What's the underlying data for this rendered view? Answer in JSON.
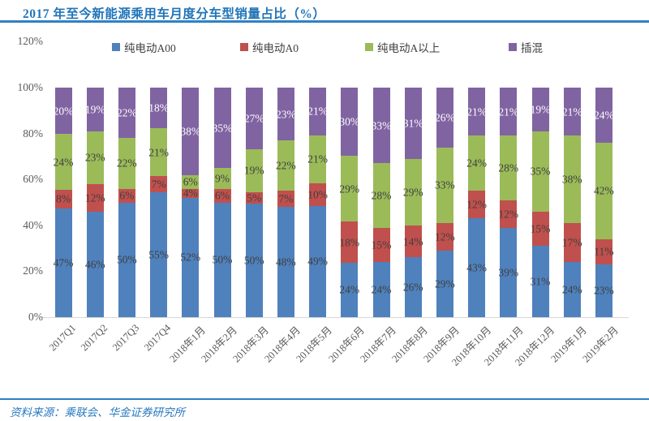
{
  "title": "2017 年至今新能源乘用车月度分车型销量占比（%）",
  "source_note": "资料来源：乘联会、华金证券研究所",
  "accent_color": "#2E81C5",
  "chart_data": {
    "type": "bar",
    "variant": "stacked-100-percent",
    "title": "2017 年至今新能源乘用车月度分车型销量占比（%）",
    "categories": [
      "2017Q1",
      "2017Q2",
      "2017Q3",
      "2017Q4",
      "2018年1月",
      "2018年2月",
      "2018年3月",
      "2018年4月",
      "2018年5月",
      "2018年6月",
      "2018年7月",
      "2018年8月",
      "2018年9月",
      "2018年10月",
      "2018年11月",
      "2018年12月",
      "2019年1月",
      "2019年2月"
    ],
    "series": [
      {
        "name": "纯电动A00",
        "color": "#4F81BD",
        "label_color": "#3f3f3f",
        "values": [
          47,
          46,
          50,
          55,
          52,
          50,
          50,
          48,
          49,
          24,
          24,
          26,
          29,
          43,
          39,
          31,
          24,
          23
        ]
      },
      {
        "name": "纯电动A0",
        "color": "#C0504D",
        "label_color": "#3f3f3f",
        "values": [
          8,
          12,
          6,
          7,
          4,
          6,
          5,
          7,
          10,
          18,
          15,
          14,
          12,
          12,
          12,
          15,
          17,
          11
        ]
      },
      {
        "name": "纯电动A以上",
        "color": "#9BBB59",
        "label_color": "#3f3f3f",
        "values": [
          24,
          23,
          22,
          21,
          6,
          9,
          19,
          22,
          21,
          29,
          28,
          29,
          33,
          24,
          28,
          35,
          38,
          42
        ]
      },
      {
        "name": "插混",
        "color": "#8064A2",
        "label_color": "#FFFFFF",
        "values": [
          20,
          19,
          22,
          18,
          38,
          35,
          27,
          23,
          21,
          30,
          33,
          31,
          26,
          21,
          21,
          19,
          21,
          24
        ]
      }
    ],
    "yticks": [
      "0%",
      "20%",
      "40%",
      "60%",
      "80%",
      "100%",
      "120%"
    ],
    "ylim": [
      0,
      120
    ],
    "value_suffix": "%",
    "grid": false,
    "legend_position": "top",
    "xlabel": "",
    "ylabel": ""
  }
}
